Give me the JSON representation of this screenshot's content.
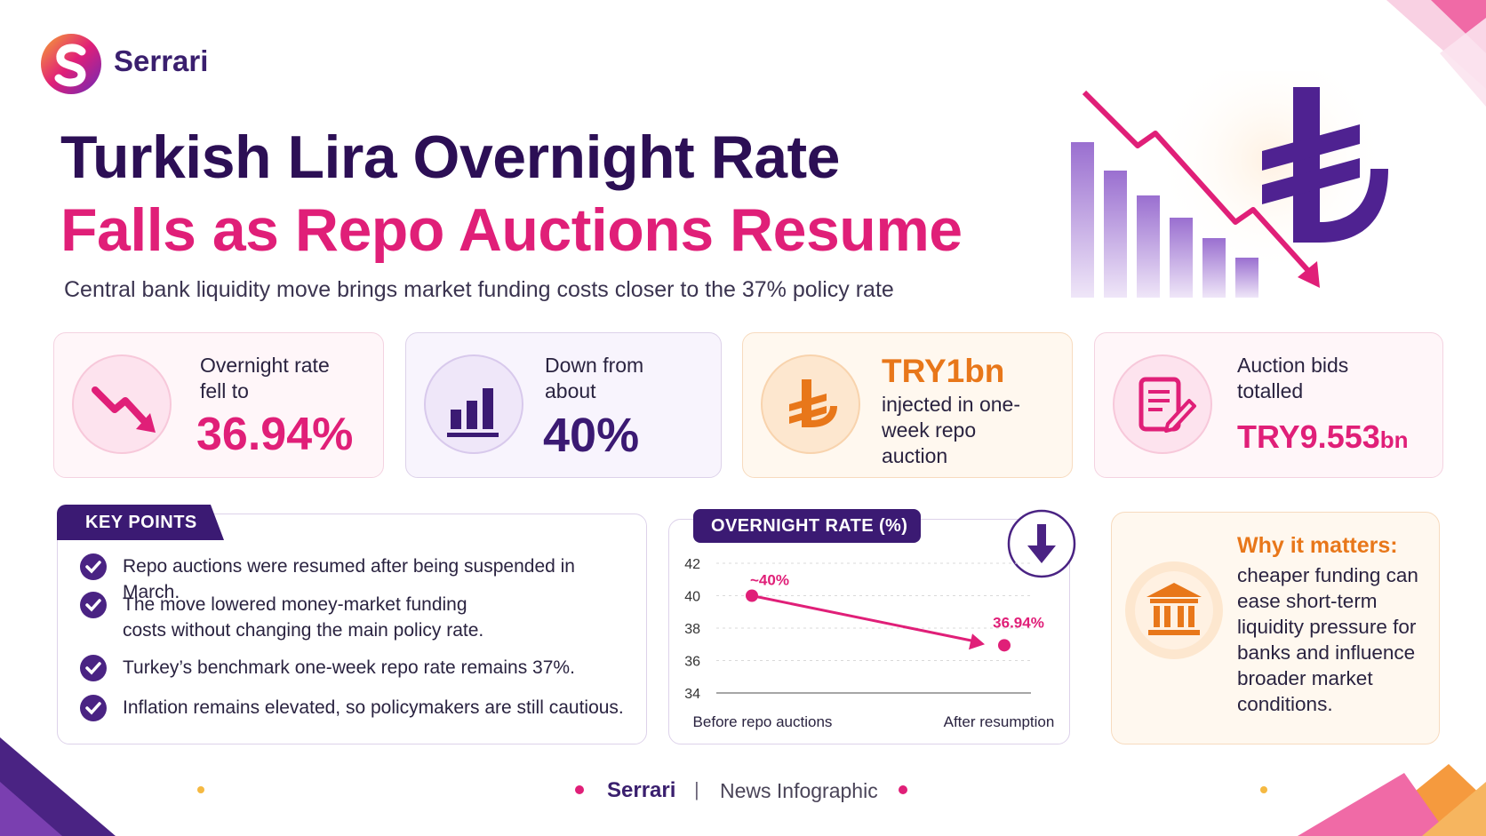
{
  "brand": {
    "name": "Serrari"
  },
  "headline": {
    "line1": "Turkish Lira Overnight Rate",
    "line2": "Falls as Repo Auctions Resume",
    "subtitle": "Central bank liquidity move brings market funding costs closer to the 37% policy rate"
  },
  "stats": [
    {
      "label": "Overnight rate fell to",
      "value": "36.94%",
      "icon": "trend-down-icon",
      "color": "#e01f78"
    },
    {
      "label": "Down from about",
      "value": "40%",
      "icon": "bar-chart-icon",
      "color": "#3b1a73"
    },
    {
      "value": "TRY1bn",
      "label": "injected in one-week repo auction",
      "icon": "lira-icon",
      "color": "#e8771a"
    },
    {
      "label": "Auction bids totalled",
      "value": "TRY9.553",
      "unit": "bn",
      "icon": "document-pen-icon",
      "color": "#e01f78"
    }
  ],
  "key_points": {
    "heading": "KEY POINTS",
    "items": [
      "Repo auctions were resumed after being suspended in March.",
      "The move lowered money-market funding costs without changing the main policy rate.",
      "Turkey’s benchmark one-week repo rate remains 37%.",
      "Inflation remains elevated, so policymakers are still cautious."
    ]
  },
  "chart_data": {
    "type": "line",
    "title": "OVERNIGHT RATE (%)",
    "categories": [
      "Before repo auctions",
      "After resumption"
    ],
    "values": [
      40,
      36.94
    ],
    "data_labels": [
      "~40%",
      "36.94%"
    ],
    "yticks": [
      42,
      40,
      38,
      36,
      34
    ],
    "ylim": [
      34,
      42
    ],
    "grid": true,
    "colors": {
      "line": "#e01f78",
      "axis": "#888888"
    }
  },
  "why": {
    "title": "Why it matters:",
    "body": "cheaper funding can ease short-term liquidity pressure for banks and influence broader market conditions.",
    "icon": "bank-icon"
  },
  "footer": {
    "brand": "Serrari",
    "separator": "|",
    "subtitle": "News Infographic"
  },
  "colors": {
    "navy": "#2c0f55",
    "magenta": "#e01f78",
    "orange": "#e8771a",
    "purple": "#3b1a73"
  }
}
